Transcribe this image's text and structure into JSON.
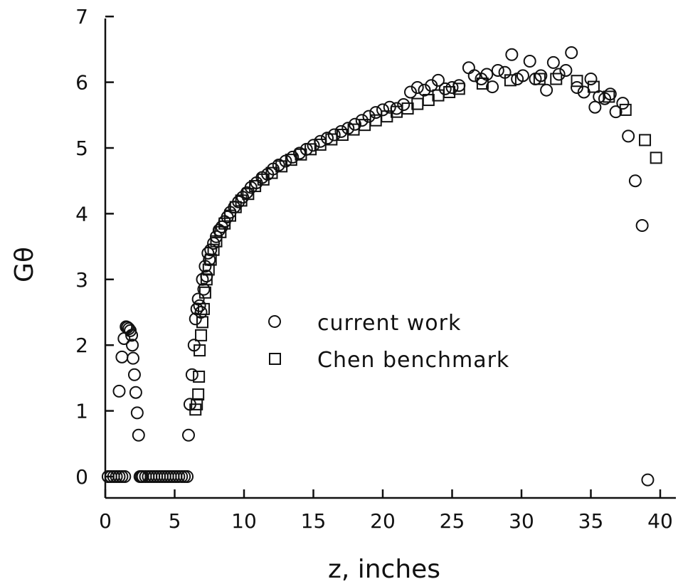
{
  "chart_data": {
    "type": "scatter",
    "title": "",
    "xlabel": "z, inches",
    "ylabel": "Gθ",
    "xlim": [
      0,
      41
    ],
    "ylim": [
      -0.3,
      7
    ],
    "xticks": [
      0,
      5,
      10,
      15,
      20,
      25,
      30,
      35,
      40
    ],
    "yticks": [
      0,
      1,
      2,
      3,
      4,
      5,
      6,
      7
    ],
    "grid": false,
    "legend_position": "center",
    "series": [
      {
        "name": "current work",
        "marker": "circle",
        "x": [
          0.2,
          0.4,
          0.6,
          0.8,
          1.0,
          1.2,
          1.4,
          1.0,
          1.2,
          1.35,
          1.5,
          1.6,
          1.7,
          1.8,
          1.9,
          1.95,
          2.0,
          2.1,
          2.2,
          2.3,
          2.4,
          2.5,
          2.6,
          2.7,
          2.9,
          3.1,
          3.3,
          3.5,
          3.7,
          3.9,
          4.1,
          4.3,
          4.5,
          4.7,
          4.9,
          5.1,
          5.3,
          5.5,
          5.7,
          5.9,
          6.0,
          6.1,
          6.25,
          6.4,
          6.5,
          6.6,
          6.7,
          6.8,
          6.9,
          7.0,
          7.1,
          7.2,
          7.3,
          7.4,
          7.5,
          7.6,
          7.8,
          8.0,
          8.2,
          8.4,
          8.6,
          8.8,
          9.0,
          9.3,
          9.6,
          9.9,
          10.2,
          10.5,
          10.9,
          11.3,
          11.7,
          12.1,
          12.5,
          13.0,
          13.5,
          14.0,
          14.5,
          15.0,
          15.5,
          16.0,
          16.5,
          17.0,
          17.5,
          18.0,
          18.5,
          19.0,
          19.5,
          20.0,
          20.5,
          21.0,
          21.5,
          22.0,
          22.5,
          23.0,
          23.5,
          24.0,
          24.5,
          25.0,
          25.5,
          26.2,
          26.6,
          27.1,
          27.5,
          27.9,
          28.3,
          28.8,
          29.3,
          29.7,
          30.1,
          30.6,
          31.0,
          31.4,
          31.8,
          32.3,
          32.7,
          33.2,
          33.6,
          34.0,
          34.5,
          35.0,
          35.3,
          35.6,
          36.0,
          36.4,
          36.8,
          37.3,
          37.7,
          38.2,
          38.7,
          39.1
        ],
        "y": [
          0,
          0,
          0,
          0,
          0,
          0,
          0,
          1.3,
          1.82,
          2.1,
          2.28,
          2.27,
          2.25,
          2.22,
          2.15,
          2.0,
          1.8,
          1.55,
          1.28,
          0.97,
          0.63,
          0,
          0,
          0,
          0,
          0,
          0,
          0,
          0,
          0,
          0,
          0,
          0,
          0,
          0,
          0,
          0,
          0,
          0,
          0,
          0.63,
          1.1,
          1.55,
          2.0,
          2.4,
          2.55,
          2.7,
          2.6,
          2.5,
          3.0,
          2.85,
          3.2,
          3.05,
          3.4,
          3.3,
          3.45,
          3.55,
          3.65,
          3.75,
          3.8,
          3.88,
          3.95,
          4.02,
          4.1,
          4.18,
          4.25,
          4.32,
          4.4,
          4.47,
          4.55,
          4.6,
          4.68,
          4.74,
          4.8,
          4.86,
          4.92,
          4.98,
          5.04,
          5.1,
          5.15,
          5.2,
          5.25,
          5.3,
          5.36,
          5.42,
          5.48,
          5.54,
          5.58,
          5.62,
          5.6,
          5.66,
          5.85,
          5.92,
          5.88,
          5.95,
          6.03,
          5.9,
          5.92,
          5.95,
          6.22,
          6.1,
          6.05,
          6.12,
          5.93,
          6.18,
          6.15,
          6.42,
          6.05,
          6.1,
          6.32,
          6.05,
          6.1,
          5.88,
          6.3,
          6.12,
          6.18,
          6.45,
          5.92,
          5.85,
          6.05,
          5.62,
          5.78,
          5.75,
          5.82,
          5.55,
          5.68,
          5.18,
          4.5,
          3.82,
          -0.05
        ]
      },
      {
        "name": "Chen benchmark",
        "marker": "square",
        "x": [
          6.5,
          6.6,
          6.7,
          6.75,
          6.8,
          6.9,
          7.0,
          7.1,
          7.2,
          7.3,
          7.45,
          7.6,
          7.8,
          8.0,
          8.3,
          8.6,
          9.0,
          9.4,
          9.8,
          10.3,
          10.8,
          11.4,
          12.0,
          12.7,
          13.4,
          14.1,
          14.8,
          15.5,
          16.3,
          17.1,
          17.9,
          18.7,
          19.5,
          20.3,
          21.0,
          21.8,
          22.5,
          23.3,
          24.0,
          24.8,
          25.5,
          27.2,
          29.2,
          31.3,
          32.5,
          34.0,
          35.2,
          36.3,
          37.5,
          38.9,
          39.7
        ],
        "y": [
          1.02,
          1.1,
          1.25,
          1.52,
          1.92,
          2.15,
          2.35,
          2.55,
          2.8,
          3.0,
          3.15,
          3.3,
          3.45,
          3.58,
          3.72,
          3.85,
          3.97,
          4.1,
          4.2,
          4.3,
          4.42,
          4.52,
          4.62,
          4.72,
          4.82,
          4.9,
          4.98,
          5.05,
          5.13,
          5.2,
          5.28,
          5.35,
          5.42,
          5.48,
          5.55,
          5.6,
          5.67,
          5.73,
          5.8,
          5.85,
          5.9,
          5.98,
          6.03,
          6.05,
          6.05,
          6.02,
          5.93,
          5.78,
          5.58,
          5.12,
          4.85
        ]
      }
    ]
  }
}
